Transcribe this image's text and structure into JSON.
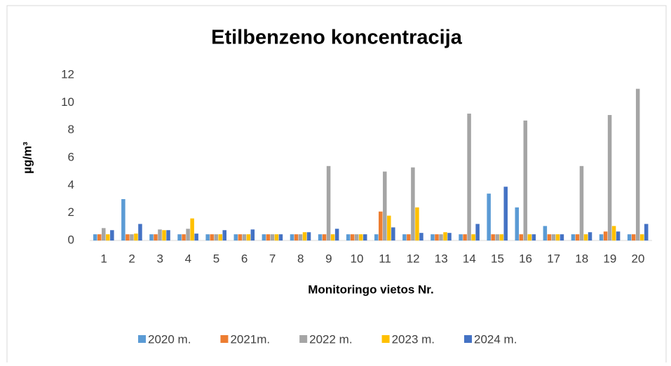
{
  "chart_data": {
    "type": "bar",
    "title": "Etilbenzeno koncentracija",
    "x_label": "Monitoringo vietos Nr.",
    "y_label": "µg/m³",
    "categories": [
      "1",
      "2",
      "3",
      "4",
      "5",
      "6",
      "7",
      "8",
      "9",
      "10",
      "11",
      "12",
      "13",
      "14",
      "15",
      "16",
      "17",
      "18",
      "19",
      "20"
    ],
    "series": [
      {
        "name": "2020 m.",
        "color": "#5b9bd5",
        "values": [
          0.45,
          3.0,
          0.45,
          0.45,
          0.45,
          0.45,
          0.45,
          0.45,
          0.45,
          0.45,
          0.45,
          0.45,
          0.45,
          0.45,
          3.4,
          2.4,
          1.05,
          0.45,
          0.45,
          0.45
        ]
      },
      {
        "name": "2021m.",
        "color": "#ed7d31",
        "values": [
          0.45,
          0.45,
          0.45,
          0.45,
          0.45,
          0.45,
          0.45,
          0.45,
          0.45,
          0.45,
          2.1,
          0.45,
          0.45,
          0.45,
          0.45,
          0.45,
          0.45,
          0.45,
          0.65,
          0.45
        ]
      },
      {
        "name": "2022 m.",
        "color": "#a5a5a5",
        "values": [
          0.9,
          0.45,
          0.8,
          0.85,
          0.45,
          0.45,
          0.45,
          0.45,
          5.4,
          0.45,
          5.0,
          5.3,
          0.45,
          9.2,
          0.45,
          8.7,
          0.45,
          5.4,
          9.1,
          11.0
        ]
      },
      {
        "name": "2023 m.",
        "color": "#ffc000",
        "values": [
          0.45,
          0.5,
          0.75,
          1.6,
          0.45,
          0.45,
          0.45,
          0.6,
          0.45,
          0.45,
          1.8,
          2.4,
          0.6,
          0.45,
          0.45,
          0.45,
          0.45,
          0.45,
          1.05,
          0.45
        ]
      },
      {
        "name": "2024 m.",
        "color": "#4472c4",
        "values": [
          0.75,
          1.2,
          0.75,
          0.5,
          0.75,
          0.8,
          0.45,
          0.6,
          0.85,
          0.45,
          0.95,
          0.55,
          0.55,
          1.2,
          3.9,
          0.45,
          0.45,
          0.6,
          0.65,
          1.2
        ]
      }
    ],
    "ylim": [
      0,
      12
    ],
    "yticks": [
      0,
      2,
      4,
      6,
      8,
      10,
      12
    ],
    "grid": false,
    "legend": "bottom"
  }
}
